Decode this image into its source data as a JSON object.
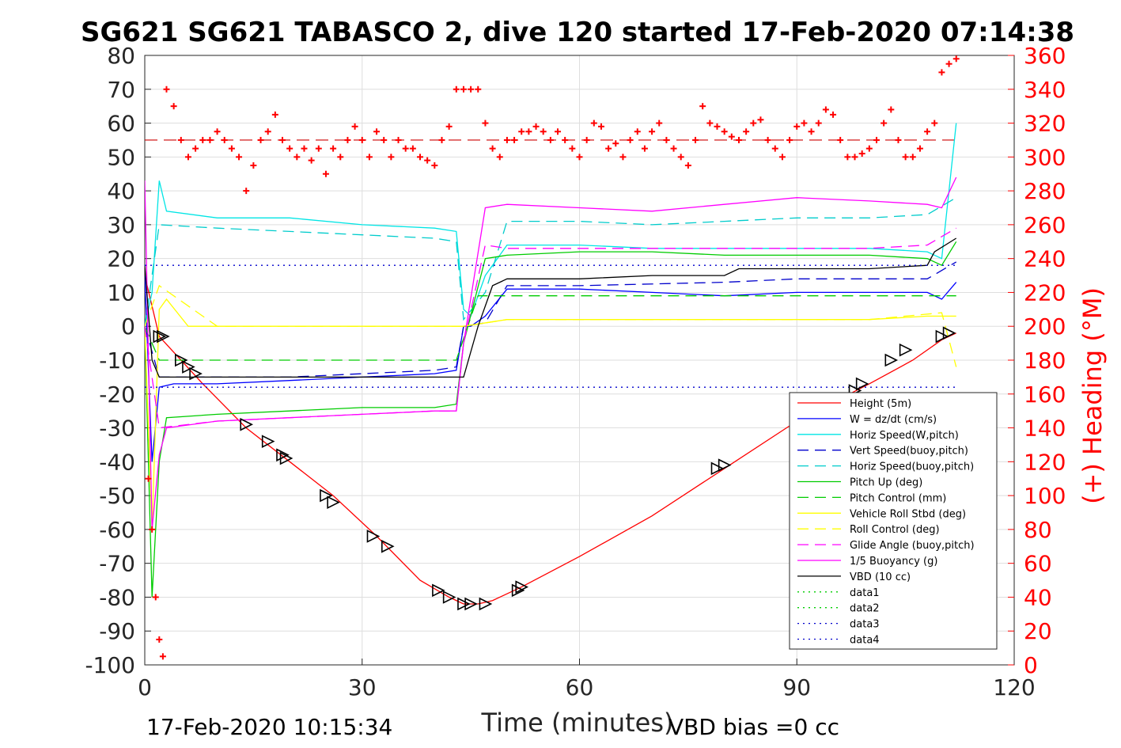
{
  "chart_data": {
    "type": "line",
    "title": "SG621 SG621 TABASCO 2, dive 120 started 17-Feb-2020 07:14:38",
    "xlabel": "Time (minutes)",
    "ylabel_right": "(+) Heading (°M)",
    "xlim": [
      0,
      120
    ],
    "ylim": [
      -100,
      80
    ],
    "ylim_right": [
      0,
      360
    ],
    "x_ticks": [
      "0",
      "30",
      "60",
      "90",
      "120"
    ],
    "y_ticks": [
      "80",
      "70",
      "60",
      "50",
      "40",
      "30",
      "20",
      "10",
      "0",
      "-10",
      "-20",
      "-30",
      "-40",
      "-50",
      "-60",
      "-70",
      "-80",
      "-90",
      "-100"
    ],
    "y_right_ticks": [
      "360",
      "340",
      "320",
      "300",
      "280",
      "260",
      "240",
      "220",
      "200",
      "180",
      "160",
      "140",
      "120",
      "100",
      "80",
      "60",
      "40",
      "20",
      "0"
    ],
    "grid": true,
    "legend_position": "bottom-right",
    "footer_left": "17-Feb-2020 10:15:34",
    "footer_right": "VBD bias =0 cc",
    "series": [
      {
        "name": "Height (5m)",
        "color": "#ff0000",
        "dash": "solid",
        "x": [
          0,
          2,
          8,
          14,
          20,
          26,
          32,
          38,
          42,
          44,
          46,
          48,
          52,
          60,
          70,
          80,
          90,
          100,
          106,
          110,
          112
        ],
        "y": [
          15,
          -3,
          -17,
          -30,
          -40,
          -50,
          -62,
          -75,
          -80,
          -82,
          -82,
          -81,
          -77,
          -68,
          -56,
          -42,
          -28,
          -17,
          -10,
          -4,
          -2
        ]
      },
      {
        "name": "W = dz/dt (cm/s)",
        "color": "#0000ff",
        "dash": "solid",
        "x": [
          0,
          1,
          2,
          4,
          10,
          20,
          30,
          40,
          43,
          44,
          45,
          47,
          50,
          60,
          70,
          80,
          90,
          100,
          108,
          110,
          112
        ],
        "y": [
          15,
          -40,
          -18,
          -17,
          -17,
          -16,
          -15,
          -14,
          -13,
          0,
          0,
          3,
          11,
          11,
          10,
          9,
          10,
          10,
          10,
          8,
          13
        ]
      },
      {
        "name": "Horiz Speed(W,pitch)",
        "color": "#00e5e5",
        "dash": "solid",
        "x": [
          0,
          1,
          2,
          3,
          10,
          20,
          30,
          40,
          43,
          44,
          45,
          47,
          50,
          60,
          70,
          80,
          90,
          100,
          108,
          110,
          112
        ],
        "y": [
          0,
          10,
          43,
          34,
          32,
          32,
          30,
          29,
          28,
          5,
          3,
          15,
          24,
          24,
          23,
          23,
          23,
          23,
          22,
          20,
          60
        ]
      },
      {
        "name": "Vert Speed(buoy,pitch)",
        "color": "#0000cc",
        "dash": "dashed",
        "x": [
          0,
          2,
          10,
          20,
          30,
          40,
          43,
          44,
          47,
          50,
          60,
          80,
          90,
          100,
          108,
          112
        ],
        "y": [
          0,
          -15,
          -15,
          -15,
          -14,
          -13,
          -12,
          0,
          1,
          12,
          12,
          13,
          14,
          14,
          14,
          19
        ]
      },
      {
        "name": "Horiz Speed(buoy,pitch)",
        "color": "#00cccc",
        "dash": "dashed",
        "x": [
          0,
          2,
          10,
          20,
          30,
          40,
          43,
          44,
          47,
          50,
          60,
          70,
          80,
          90,
          100,
          108,
          112
        ],
        "y": [
          0,
          30,
          29,
          28,
          27,
          26,
          25,
          2,
          10,
          31,
          31,
          30,
          31,
          32,
          32,
          33,
          38
        ]
      },
      {
        "name": "Pitch Up (deg)",
        "color": "#00cc00",
        "dash": "solid",
        "x": [
          0,
          1,
          2,
          3,
          10,
          20,
          30,
          40,
          43,
          44,
          47,
          50,
          60,
          70,
          80,
          90,
          100,
          108,
          110,
          112
        ],
        "y": [
          0,
          -80,
          -40,
          -27,
          -26,
          -25,
          -24,
          -24,
          -23,
          -5,
          20,
          21,
          22,
          22,
          21,
          21,
          21,
          20,
          18,
          25
        ]
      },
      {
        "name": "Pitch Control (mm)",
        "color": "#00cc00",
        "dash": "dashed",
        "x": [
          0,
          2,
          10,
          20,
          30,
          40,
          43,
          46,
          48,
          60,
          80,
          100,
          110,
          112
        ],
        "y": [
          0,
          -10,
          -10,
          -10,
          -10,
          -10,
          -10,
          9,
          9,
          9,
          9,
          9,
          9,
          9
        ]
      },
      {
        "name": "Vehicle Roll Stbd (deg)",
        "color": "#ffff00",
        "dash": "solid",
        "x": [
          0,
          1,
          2,
          3,
          6,
          10,
          20,
          30,
          40,
          43,
          44,
          50,
          60,
          70,
          80,
          90,
          100,
          108,
          110,
          112
        ],
        "y": [
          0,
          -60,
          5,
          8,
          0,
          0,
          0,
          0,
          0,
          0,
          0,
          2,
          2,
          2,
          2,
          2,
          2,
          3,
          3,
          3
        ]
      },
      {
        "name": "Roll Control (deg)",
        "color": "#ffff00",
        "dash": "dashed",
        "x": [
          0,
          2,
          10,
          20,
          30,
          40,
          43,
          44,
          50,
          60,
          80,
          100,
          110,
          112
        ],
        "y": [
          0,
          12,
          0,
          0,
          0,
          0,
          0,
          0,
          2,
          2,
          2,
          2,
          4,
          -12
        ]
      },
      {
        "name": "Glide Angle (buoy,pitch)",
        "color": "#ff00ff",
        "dash": "dashed",
        "x": [
          0,
          2,
          10,
          20,
          30,
          40,
          43,
          44,
          47,
          50,
          60,
          70,
          80,
          90,
          100,
          108,
          112
        ],
        "y": [
          0,
          -30,
          -28,
          -27,
          -26,
          -25,
          -25,
          -5,
          24,
          23,
          23,
          23,
          23,
          23,
          23,
          24,
          29
        ]
      },
      {
        "name": "1/5 Buoyancy (g)",
        "color": "#ff00ff",
        "dash": "solid",
        "x": [
          0,
          1,
          2,
          3,
          10,
          20,
          30,
          40,
          43,
          44,
          47,
          50,
          60,
          70,
          80,
          90,
          100,
          108,
          110,
          112
        ],
        "y": [
          43,
          -60,
          -38,
          -30,
          -28,
          -27,
          -26,
          -25,
          -25,
          -5,
          35,
          36,
          35,
          34,
          36,
          38,
          37,
          36,
          35,
          44
        ]
      },
      {
        "name": "VBD (10 cc)",
        "color": "#000000",
        "dash": "solid",
        "x": [
          0,
          1,
          2,
          10,
          20,
          30,
          40,
          44,
          46,
          48,
          50,
          60,
          70,
          80,
          82,
          90,
          100,
          108,
          109,
          112
        ],
        "y": [
          18,
          -10,
          -15,
          -15,
          -15,
          -15,
          -15,
          -15,
          0,
          12,
          14,
          14,
          15,
          15,
          17,
          17,
          17,
          18,
          22,
          26
        ]
      },
      {
        "name": "data1",
        "color": "#00cc00",
        "dash": "dotted",
        "x": [],
        "y": []
      },
      {
        "name": "data2",
        "color": "#00cc00",
        "dash": "dotted",
        "x": [],
        "y": []
      },
      {
        "name": "data3",
        "color": "#0000cc",
        "dash": "dotted",
        "x": [
          0,
          112
        ],
        "y": [
          18,
          18
        ]
      },
      {
        "name": "data4",
        "color": "#0000cc",
        "dash": "dotted",
        "x": [
          0,
          112
        ],
        "y": [
          -18,
          -18
        ]
      }
    ],
    "heading": {
      "color": "#ff0000",
      "marker": "+",
      "reference_line_value": 310,
      "x": [
        0.5,
        1,
        1.5,
        2,
        2.5,
        3,
        4,
        5,
        6,
        7,
        8,
        9,
        10,
        11,
        12,
        13,
        14,
        15,
        16,
        17,
        18,
        19,
        20,
        21,
        22,
        23,
        24,
        25,
        26,
        27,
        28,
        29,
        30,
        31,
        32,
        33,
        34,
        35,
        36,
        37,
        38,
        39,
        40,
        41,
        42,
        43,
        44,
        45,
        46,
        47,
        48,
        49,
        50,
        51,
        52,
        53,
        54,
        55,
        56,
        57,
        58,
        59,
        60,
        61,
        62,
        63,
        64,
        65,
        66,
        67,
        68,
        69,
        70,
        71,
        72,
        73,
        74,
        75,
        76,
        77,
        78,
        79,
        80,
        81,
        82,
        83,
        84,
        85,
        86,
        87,
        88,
        89,
        90,
        91,
        92,
        93,
        94,
        95,
        96,
        97,
        98,
        99,
        100,
        101,
        102,
        103,
        104,
        105,
        106,
        107,
        108,
        109,
        110,
        111,
        112
      ],
      "y": [
        110,
        80,
        40,
        15,
        5,
        340,
        330,
        310,
        300,
        305,
        310,
        310,
        315,
        310,
        305,
        300,
        280,
        295,
        310,
        315,
        325,
        310,
        305,
        300,
        305,
        298,
        305,
        290,
        305,
        300,
        310,
        318,
        310,
        300,
        315,
        310,
        300,
        310,
        305,
        305,
        300,
        298,
        295,
        310,
        318,
        340,
        340,
        340,
        340,
        320,
        305,
        300,
        310,
        310,
        315,
        315,
        318,
        315,
        310,
        315,
        310,
        305,
        300,
        310,
        320,
        318,
        305,
        308,
        300,
        310,
        315,
        305,
        315,
        320,
        310,
        305,
        300,
        295,
        310,
        330,
        320,
        318,
        315,
        312,
        310,
        315,
        320,
        322,
        310,
        305,
        300,
        310,
        318,
        320,
        315,
        320,
        328,
        325,
        310,
        300,
        300,
        302,
        305,
        310,
        320,
        328,
        310,
        300,
        300,
        305,
        315,
        320,
        350,
        355,
        358
      ]
    },
    "markers": {
      "style": "triangle",
      "x": [
        2,
        2.5,
        5,
        6,
        7,
        14,
        17,
        19,
        19.5,
        25,
        26,
        31.5,
        33.5,
        40.5,
        42,
        44,
        45,
        47,
        51.5,
        52,
        79,
        80,
        98,
        99,
        103,
        105,
        110,
        111
      ],
      "y": [
        -3,
        -3,
        -10,
        -12,
        -14,
        -29,
        -34,
        -38,
        -39,
        -50,
        -52,
        -62,
        -65,
        -78,
        -80,
        -82,
        -82,
        -82,
        -78,
        -77,
        -42,
        -41,
        -19,
        -17,
        -10,
        -7,
        -3,
        -2
      ]
    }
  }
}
